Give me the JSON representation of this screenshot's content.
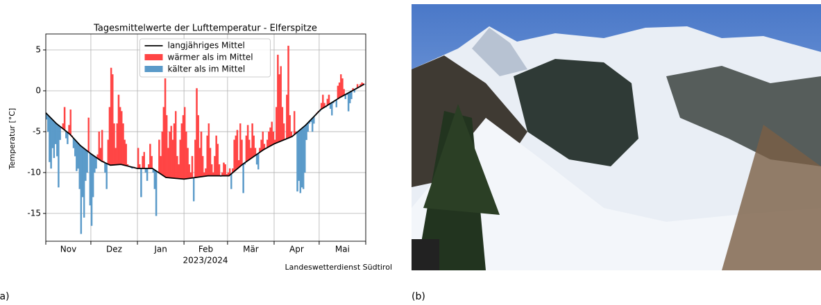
{
  "chart_data": {
    "type": "anomaly-bar",
    "title": "Tagesmittelwerte der Lufttemperatur - Elferspitze",
    "y_label": "Temperatur [°C]",
    "x_label": "2023/2024",
    "source": "Landeswetterdienst Südtirol",
    "xlim": [
      0,
      213
    ],
    "month_starts": [
      0,
      30,
      61,
      92,
      121,
      152,
      182,
      213
    ],
    "xticks": [
      {
        "value": 15,
        "label": "Nov"
      },
      {
        "value": 45.5,
        "label": "Dez"
      },
      {
        "value": 76.5,
        "label": "Jan"
      },
      {
        "value": 106.5,
        "label": "Feb"
      },
      {
        "value": 136.5,
        "label": "Mär"
      },
      {
        "value": 167,
        "label": "Apr"
      },
      {
        "value": 197.5,
        "label": "Mai"
      }
    ],
    "ylim": [
      -18.4,
      6.95
    ],
    "yticks": [
      -15,
      -10,
      -5,
      0,
      5
    ],
    "grid": true,
    "legend": "upper center",
    "mean": {
      "name": "langjähriges Mittel",
      "color": "#000000",
      "x": [
        0,
        7,
        16,
        23,
        30,
        37,
        43,
        50,
        61,
        71,
        80,
        92,
        108,
        122,
        131,
        145,
        152,
        164,
        173,
        183,
        196,
        205,
        212
      ],
      "values": [
        -2.7,
        -4,
        -5.3,
        -6.7,
        -7.7,
        -8.6,
        -9.1,
        -9,
        -9.5,
        -9.5,
        -10.6,
        -10.8,
        -10.4,
        -10.4,
        -9,
        -7.2,
        -6.5,
        -5.6,
        -4.2,
        -2.3,
        -0.8,
        0.1,
        0.8
      ]
    },
    "warm": {
      "name": "wärmer als im Mittel",
      "color": "#ff4444"
    },
    "cold": {
      "name": "kälter als im Mittel",
      "color": "#5a9ac9"
    },
    "daily": {
      "values": [
        -3.5,
        -5,
        -8.7,
        -9.5,
        -7,
        -8.2,
        -6.5,
        -8,
        -11.8,
        -6,
        -4.5,
        -4,
        -2,
        -5.8,
        -6.5,
        -4.2,
        -2.3,
        -5.5,
        -7,
        -8,
        -9.8,
        -9.5,
        -12,
        -17.5,
        -13,
        -15.5,
        -11,
        -10,
        -3.3,
        -14,
        -16.5,
        -13,
        -10,
        -9.5,
        -7.8,
        -5,
        -7,
        -4.8,
        -8.6,
        -10,
        -12,
        -6,
        -2,
        2.8,
        2,
        -4,
        -7,
        -4,
        -0.5,
        -2,
        -2.5,
        -4,
        -6,
        -6.5,
        -9,
        -9.2,
        -9.4,
        -9.5,
        -9.3,
        -9.4,
        -9.5,
        -7,
        -9,
        -13,
        -8,
        -7.5,
        -10,
        -11,
        -9,
        -6.5,
        -8,
        -10,
        -12,
        -15.3,
        -10,
        -6,
        -8,
        -5,
        -2,
        1.5,
        -3,
        -7,
        -5,
        -4.3,
        -6,
        -4,
        -2.5,
        -8,
        -9,
        -6,
        -4,
        -3,
        -2,
        -5,
        -7,
        -9,
        -10,
        -8,
        -13.5,
        -6,
        0.3,
        -3,
        -7,
        -5,
        -8,
        -10,
        -9.5,
        -5.5,
        -4,
        -7,
        -9,
        -10,
        -8,
        -5.5,
        -6.5,
        -9,
        -10.5,
        -10,
        -8.8,
        -9,
        -10.2,
        -10,
        -9.5,
        -12,
        -9.5,
        -6,
        -5.5,
        -4.8,
        -8.5,
        -4,
        -6,
        -12.5,
        -9,
        -5.5,
        -4.2,
        -6,
        -7,
        -4,
        -5.5,
        -7,
        -9,
        -9.6,
        -7,
        -6,
        -5,
        -6.5,
        -7,
        -6,
        -5,
        -4.5,
        -3.8,
        -5,
        -6,
        -2,
        4.4,
        2,
        3,
        -2,
        -4,
        -6,
        -0.5,
        5.5,
        -3,
        -5,
        -5.5,
        -2.5,
        -5,
        -12.3,
        -11,
        -12.5,
        -11.8,
        -12,
        -10,
        -6,
        -5,
        -4,
        -3.8,
        -5,
        -4,
        -3,
        -2.7,
        -2.5,
        -2.5,
        -1.5,
        -0.5,
        -1.5,
        -2,
        -1,
        -0.5,
        -2.2,
        -3,
        -1.5,
        -1.2,
        -2,
        0.6,
        1,
        2,
        1.5,
        0.2,
        -1,
        -0.5,
        -2.5,
        -1.5,
        -1,
        0.3,
        -0.2,
        0.2,
        0.8,
        0.5,
        0.8,
        1,
        0.9,
        0.8
      ]
    }
  },
  "panel_labels": [
    "(a)",
    "(b)"
  ]
}
